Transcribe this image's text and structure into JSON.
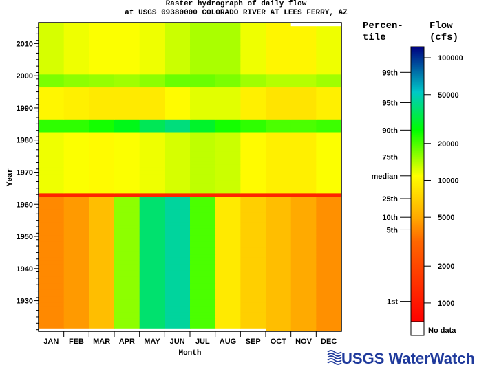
{
  "chart_data": {
    "type": "heatmap",
    "title": "Raster hydrograph of daily flow",
    "subtitle": "at USGS 09380000 COLORADO RIVER AT LEES FERRY, AZ",
    "xlabel": "Month",
    "ylabel": "Year",
    "x_categories": [
      "JAN",
      "FEB",
      "MAR",
      "APR",
      "MAY",
      "JUN",
      "JUL",
      "AUG",
      "SEP",
      "OCT",
      "NOV",
      "DEC"
    ],
    "y_range": [
      1921,
      2016
    ],
    "y_ticks": [
      1930,
      1940,
      1950,
      1960,
      1970,
      1980,
      1990,
      2000,
      2010
    ],
    "color_scale": "log",
    "value_unit": "cfs",
    "no_data": [
      {
        "year": 1921,
        "months": [
          "JAN",
          "FEB",
          "MAR",
          "APR",
          "MAY",
          "JUN",
          "JUL",
          "AUG",
          "SEP"
        ]
      },
      {
        "year": 2016,
        "months": [
          "NOV",
          "DEC"
        ]
      }
    ],
    "periods": [
      {
        "years": [
          1921,
          1962
        ],
        "monthly_flow_cfs": [
          4000,
          4500,
          6000,
          16000,
          38000,
          45000,
          20000,
          9000,
          7000,
          6000,
          5000,
          4200
        ]
      },
      {
        "years": [
          1963,
          1963
        ],
        "monthly_flow_cfs": [
          1200,
          1200,
          1200,
          1200,
          1200,
          1200,
          1200,
          1200,
          1200,
          1200,
          1200,
          1200
        ]
      },
      {
        "years": [
          1964,
          1982
        ],
        "monthly_flow_cfs": [
          11500,
          11000,
          10500,
          11000,
          11500,
          12500,
          13500,
          13000,
          10500,
          9500,
          9500,
          11000
        ]
      },
      {
        "years": [
          1983,
          1986
        ],
        "monthly_flow_cfs": [
          22000,
          22000,
          24000,
          28000,
          35000,
          40000,
          30000,
          24000,
          22000,
          20000,
          20000,
          21000
        ]
      },
      {
        "years": [
          1987,
          1996
        ],
        "monthly_flow_cfs": [
          10000,
          9500,
          9000,
          9000,
          9000,
          10500,
          12000,
          12000,
          9500,
          8500,
          8500,
          9500
        ]
      },
      {
        "years": [
          1997,
          2000
        ],
        "monthly_flow_cfs": [
          17000,
          16000,
          15500,
          15000,
          16000,
          18000,
          18000,
          17000,
          15000,
          14000,
          14000,
          15000
        ]
      },
      {
        "years": [
          2001,
          2016
        ],
        "monthly_flow_cfs": [
          12500,
          11500,
          11000,
          11000,
          11500,
          13000,
          14500,
          14500,
          11500,
          10000,
          10000,
          11500
        ]
      }
    ],
    "colorbar": {
      "range_cfs": [
        705,
        123000
      ],
      "stops": [
        {
          "cfs": 705,
          "color": "#ff0000"
        },
        {
          "cfs": 3160,
          "color": "#ff6600"
        },
        {
          "cfs": 5000,
          "color": "#ffaa00"
        },
        {
          "cfs": 10900,
          "color": "#ffff00"
        },
        {
          "cfs": 25700,
          "color": "#00ff00"
        },
        {
          "cfs": 52500,
          "color": "#00c8c8"
        },
        {
          "cfs": 123000,
          "color": "#000080"
        }
      ],
      "no_data_color": "#ffffff",
      "flow_header": [
        "Flow",
        "(cfs)"
      ],
      "percentile_header": [
        "Percen-",
        "tile"
      ],
      "flow_ticks": [
        {
          "label": "100000",
          "cfs": 100000
        },
        {
          "label": "50000",
          "cfs": 50000
        },
        {
          "label": "20000",
          "cfs": 20000
        },
        {
          "label": "10000",
          "cfs": 10000
        },
        {
          "label": "5000",
          "cfs": 5000
        },
        {
          "label": "2000",
          "cfs": 2000
        },
        {
          "label": "1000",
          "cfs": 1000
        }
      ],
      "percentile_ticks": [
        {
          "label": "99th",
          "cfs": 76000
        },
        {
          "label": "95th",
          "cfs": 43000
        },
        {
          "label": "90th",
          "cfs": 25700
        },
        {
          "label": "75th",
          "cfs": 15500
        },
        {
          "label": "median",
          "cfs": 10900
        },
        {
          "label": "25th",
          "cfs": 7100
        },
        {
          "label": "10th",
          "cfs": 5000
        },
        {
          "label": "5th",
          "cfs": 3950
        },
        {
          "label": "1st",
          "cfs": 1030
        }
      ],
      "no_data_label": "No data"
    }
  },
  "logo": {
    "text": "USGS WaterWatch",
    "color": "#1f3a9c"
  }
}
